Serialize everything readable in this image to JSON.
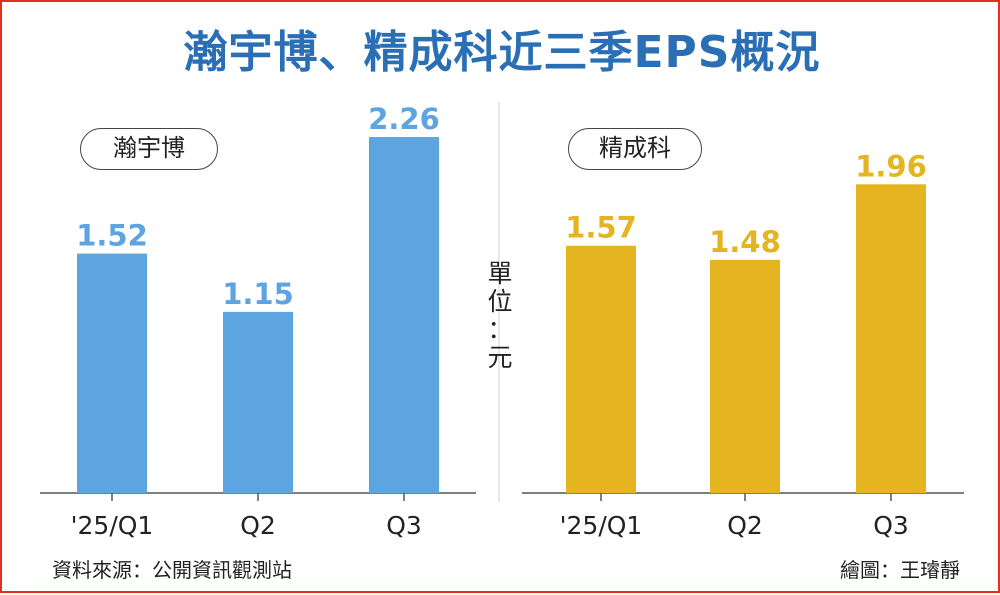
{
  "title": "瀚宇博、精成科近三季EPS概況",
  "unit_label": [
    "單",
    "位",
    "：",
    "元"
  ],
  "source": "資料來源：公開資訊觀測站",
  "credit": "繪圖：王璿靜",
  "colors": {
    "title": "#2a6fb5",
    "left_bars": "#5da5e0",
    "right_bars": "#e5b421",
    "frame": "#e0301e"
  },
  "chart_data": [
    {
      "type": "bar",
      "title": "瀚宇博",
      "categories": [
        "'25/Q1",
        "Q2",
        "Q3"
      ],
      "values": [
        1.52,
        1.15,
        2.26
      ],
      "value_labels": [
        "1.52",
        "1.15",
        "2.26"
      ],
      "ylabel": "單位：元",
      "ylim": [
        0,
        2.5
      ],
      "color": "#5da5e0"
    },
    {
      "type": "bar",
      "title": "精成科",
      "categories": [
        "'25/Q1",
        "Q2",
        "Q3"
      ],
      "values": [
        1.57,
        1.48,
        1.96
      ],
      "value_labels": [
        "1.57",
        "1.48",
        "1.96"
      ],
      "ylabel": "單位：元",
      "ylim": [
        0,
        2.5
      ],
      "color": "#e5b421"
    }
  ]
}
